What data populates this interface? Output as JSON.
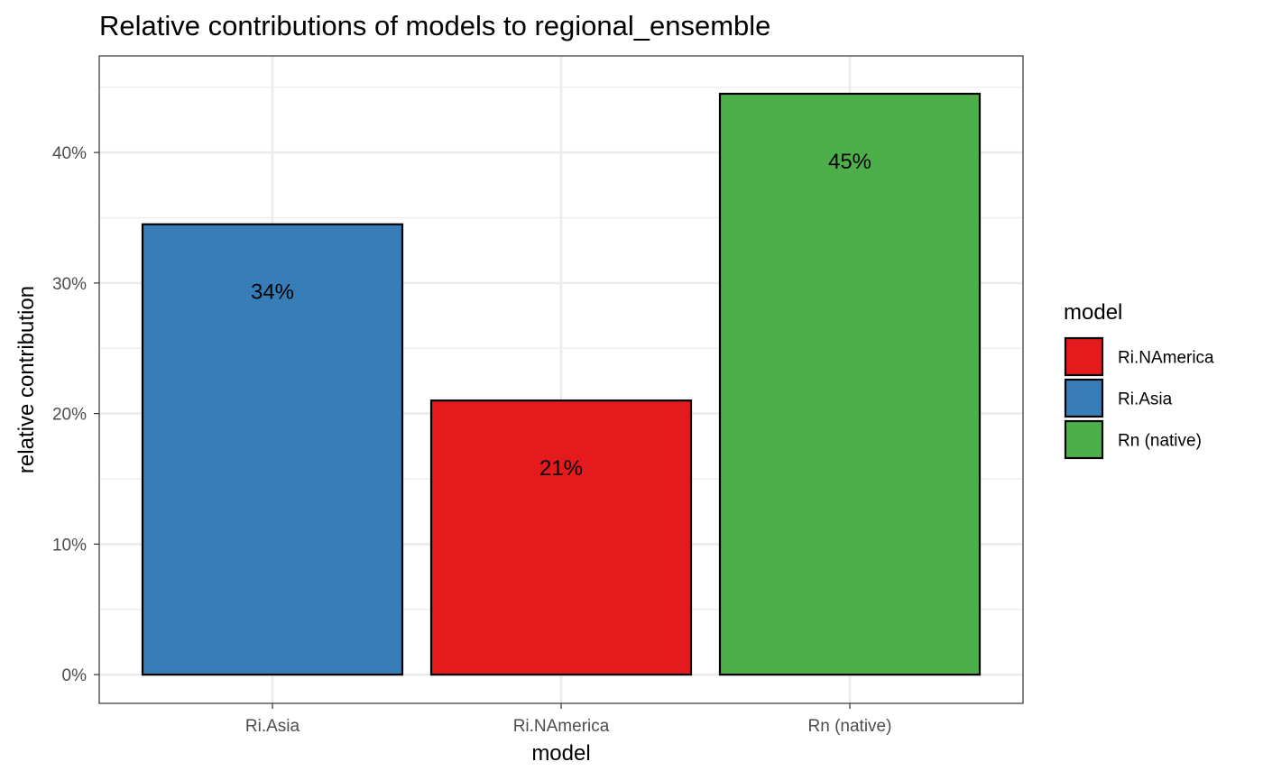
{
  "chart_data": {
    "type": "bar",
    "title": "Relative contributions of models to regional_ensemble",
    "xlabel": "model",
    "ylabel": "relative contribution",
    "categories": [
      "Ri.Asia",
      "Ri.NAmerica",
      "Rn (native)"
    ],
    "values": [
      0.345,
      0.21,
      0.445
    ],
    "data_labels": [
      "34%",
      "21%",
      "45%"
    ],
    "bar_colors": [
      "#377EB8",
      "#E41A1C",
      "#4DAF4A"
    ],
    "ylim": [
      -0.022,
      0.474
    ],
    "y_ticks": [
      0,
      0.1,
      0.2,
      0.3,
      0.4
    ],
    "y_tick_labels": [
      "0%",
      "10%",
      "20%",
      "30%",
      "40%"
    ],
    "grid": true,
    "legend": {
      "title": "model",
      "placement": "right",
      "items": [
        {
          "label": "Ri.NAmerica",
          "color": "#E41A1C"
        },
        {
          "label": "Ri.Asia",
          "color": "#377EB8"
        },
        {
          "label": "Rn (native)",
          "color": "#4DAF4A"
        }
      ]
    }
  }
}
